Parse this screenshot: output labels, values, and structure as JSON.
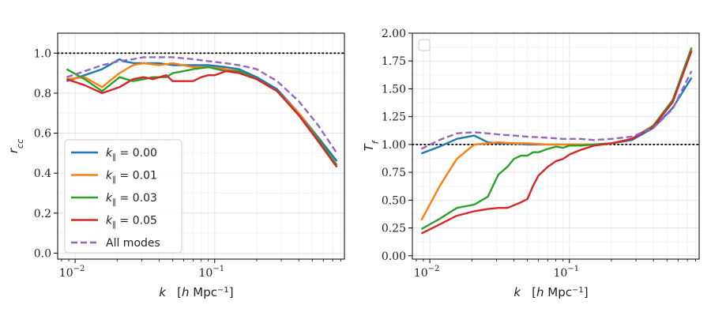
{
  "chart_data": [
    {
      "type": "line",
      "xscale": "log",
      "xlim": [
        0.0075,
        0.85
      ],
      "ylim": [
        -0.03,
        1.1
      ],
      "xlabel": "k   [h Mpc^-1]",
      "ylabel": "r_cc",
      "xticks": [
        {
          "value": 0.01,
          "base": "10",
          "exp": "−2"
        },
        {
          "value": 0.1,
          "base": "10",
          "exp": "−1"
        }
      ],
      "yticks": [
        {
          "value": 0.0,
          "label": "0.0"
        },
        {
          "value": 0.2,
          "label": "0.2"
        },
        {
          "value": 0.4,
          "label": "0.4"
        },
        {
          "value": 0.6,
          "label": "0.6"
        },
        {
          "value": 0.8,
          "label": "0.8"
        },
        {
          "value": 1.0,
          "label": "1.0"
        }
      ],
      "hline": {
        "y": 1.0,
        "style": "dotted",
        "color": "#000000"
      },
      "legend": "lower-left",
      "series": [
        {
          "name": "k∥ = 0.00",
          "legend_prefix": "k",
          "legend_sub": "∥",
          "legend_suffix": " = 0.00",
          "color": "#1f77b4",
          "dash": "solid",
          "x": [
            0.0087,
            0.0117,
            0.0156,
            0.0208,
            0.022,
            0.0265,
            0.031,
            0.04,
            0.05,
            0.07,
            0.09,
            0.12,
            0.15,
            0.2,
            0.28,
            0.4,
            0.55,
            0.75
          ],
          "y": [
            0.86,
            0.89,
            0.92,
            0.97,
            0.96,
            0.95,
            0.95,
            0.95,
            0.94,
            0.94,
            0.94,
            0.93,
            0.92,
            0.88,
            0.82,
            0.7,
            0.58,
            0.46
          ]
        },
        {
          "name": "k∥ = 0.01",
          "legend_prefix": "k",
          "legend_sub": "∥",
          "legend_suffix": " = 0.01",
          "color": "#ff7f0e",
          "dash": "solid",
          "x": [
            0.0087,
            0.0117,
            0.0156,
            0.0208,
            0.026,
            0.031,
            0.04,
            0.05,
            0.07,
            0.09,
            0.12,
            0.15,
            0.2,
            0.28,
            0.4,
            0.55,
            0.75
          ],
          "y": [
            0.87,
            0.88,
            0.83,
            0.9,
            0.94,
            0.95,
            0.94,
            0.95,
            0.93,
            0.93,
            0.92,
            0.91,
            0.87,
            0.81,
            0.7,
            0.57,
            0.44
          ]
        },
        {
          "name": "k∥ = 0.03",
          "legend_prefix": "k",
          "legend_sub": "∥",
          "legend_suffix": " = 0.03",
          "color": "#2ca02c",
          "dash": "solid",
          "x": [
            0.0087,
            0.0117,
            0.0156,
            0.0208,
            0.026,
            0.031,
            0.036,
            0.04,
            0.045,
            0.05,
            0.06,
            0.07,
            0.09,
            0.12,
            0.15,
            0.2,
            0.28,
            0.4,
            0.55,
            0.75
          ],
          "y": [
            0.92,
            0.87,
            0.81,
            0.88,
            0.86,
            0.87,
            0.88,
            0.88,
            0.88,
            0.9,
            0.91,
            0.92,
            0.93,
            0.91,
            0.91,
            0.87,
            0.81,
            0.69,
            0.57,
            0.44
          ]
        },
        {
          "name": "k∥ = 0.05",
          "legend_prefix": "k",
          "legend_sub": "∥",
          "legend_suffix": " = 0.05",
          "color": "#d62728",
          "dash": "solid",
          "x": [
            0.0087,
            0.0117,
            0.0156,
            0.0208,
            0.026,
            0.031,
            0.036,
            0.045,
            0.05,
            0.06,
            0.07,
            0.08,
            0.09,
            0.1,
            0.12,
            0.15,
            0.2,
            0.28,
            0.4,
            0.55,
            0.75
          ],
          "y": [
            0.87,
            0.84,
            0.8,
            0.83,
            0.87,
            0.88,
            0.87,
            0.89,
            0.86,
            0.86,
            0.86,
            0.88,
            0.89,
            0.89,
            0.91,
            0.9,
            0.87,
            0.81,
            0.69,
            0.56,
            0.43
          ]
        },
        {
          "name": "All modes",
          "legend_prefix": "All modes",
          "legend_sub": "",
          "legend_suffix": "",
          "color": "#9467bd",
          "dash": "dashed",
          "x": [
            0.0087,
            0.0117,
            0.0156,
            0.0208,
            0.026,
            0.031,
            0.04,
            0.05,
            0.07,
            0.09,
            0.12,
            0.15,
            0.2,
            0.28,
            0.4,
            0.55,
            0.75
          ],
          "y": [
            0.88,
            0.91,
            0.94,
            0.96,
            0.97,
            0.98,
            0.98,
            0.98,
            0.97,
            0.96,
            0.95,
            0.94,
            0.92,
            0.86,
            0.76,
            0.64,
            0.5
          ]
        }
      ]
    },
    {
      "type": "line",
      "xscale": "log",
      "xlim": [
        0.0075,
        0.85
      ],
      "ylim": [
        -0.03,
        2.0
      ],
      "xlabel": "k   [h Mpc^-1]",
      "ylabel": "T_f",
      "xticks": [
        {
          "value": 0.01,
          "base": "10",
          "exp": "−2"
        },
        {
          "value": 0.1,
          "base": "10",
          "exp": "−1"
        }
      ],
      "yticks": [
        {
          "value": 0.0,
          "label": "0.00"
        },
        {
          "value": 0.25,
          "label": "0.25"
        },
        {
          "value": 0.5,
          "label": "0.50"
        },
        {
          "value": 0.75,
          "label": "0.75"
        },
        {
          "value": 1.0,
          "label": "1.00"
        },
        {
          "value": 1.25,
          "label": "1.25"
        },
        {
          "value": 1.5,
          "label": "1.50"
        },
        {
          "value": 1.75,
          "label": "1.75"
        },
        {
          "value": 2.0,
          "label": "2.00"
        }
      ],
      "hline": {
        "y": 1.0,
        "style": "dotted",
        "color": "#000000"
      },
      "legend": "empty box top-left",
      "series": [
        {
          "name": "k∥ = 0.00",
          "color": "#1f77b4",
          "dash": "solid",
          "x": [
            0.0087,
            0.0117,
            0.0156,
            0.0208,
            0.026,
            0.031,
            0.04,
            0.05,
            0.07,
            0.09,
            0.12,
            0.15,
            0.2,
            0.28,
            0.4,
            0.55,
            0.75
          ],
          "y": [
            0.92,
            0.98,
            1.05,
            1.08,
            1.02,
            1.01,
            1.01,
            1.0,
            1.0,
            1.0,
            1.0,
            1.0,
            1.01,
            1.04,
            1.15,
            1.33,
            1.6
          ]
        },
        {
          "name": "k∥ = 0.01",
          "color": "#ff7f0e",
          "dash": "solid",
          "x": [
            0.0087,
            0.0117,
            0.0156,
            0.0208,
            0.026,
            0.031,
            0.04,
            0.05,
            0.07,
            0.09,
            0.12,
            0.15,
            0.2,
            0.28,
            0.4,
            0.55,
            0.75
          ],
          "y": [
            0.32,
            0.62,
            0.87,
            1.0,
            1.01,
            1.02,
            1.01,
            1.01,
            1.0,
            1.0,
            1.0,
            1.0,
            1.01,
            1.05,
            1.17,
            1.4,
            1.85
          ]
        },
        {
          "name": "k∥ = 0.03",
          "color": "#2ca02c",
          "dash": "solid",
          "x": [
            0.0087,
            0.0117,
            0.0156,
            0.0208,
            0.026,
            0.031,
            0.036,
            0.04,
            0.045,
            0.05,
            0.055,
            0.06,
            0.07,
            0.08,
            0.09,
            0.1,
            0.12,
            0.15,
            0.2,
            0.28,
            0.4,
            0.55,
            0.75
          ],
          "y": [
            0.24,
            0.33,
            0.43,
            0.46,
            0.53,
            0.73,
            0.8,
            0.87,
            0.9,
            0.9,
            0.93,
            0.93,
            0.96,
            0.98,
            0.97,
            0.99,
            0.99,
            1.0,
            1.01,
            1.05,
            1.17,
            1.4,
            1.87
          ]
        },
        {
          "name": "k∥ = 0.05",
          "color": "#d62728",
          "dash": "solid",
          "x": [
            0.0087,
            0.0117,
            0.0156,
            0.0208,
            0.026,
            0.031,
            0.036,
            0.045,
            0.05,
            0.055,
            0.06,
            0.07,
            0.08,
            0.09,
            0.1,
            0.12,
            0.15,
            0.2,
            0.28,
            0.4,
            0.55,
            0.75
          ],
          "y": [
            0.2,
            0.28,
            0.36,
            0.4,
            0.42,
            0.43,
            0.43,
            0.48,
            0.51,
            0.63,
            0.72,
            0.8,
            0.85,
            0.87,
            0.91,
            0.95,
            0.99,
            1.01,
            1.05,
            1.16,
            1.38,
            1.84
          ]
        },
        {
          "name": "All modes",
          "color": "#9467bd",
          "dash": "dashed",
          "x": [
            0.0087,
            0.0117,
            0.0156,
            0.0208,
            0.026,
            0.031,
            0.04,
            0.05,
            0.07,
            0.09,
            0.12,
            0.15,
            0.2,
            0.28,
            0.4,
            0.55,
            0.75
          ],
          "y": [
            0.96,
            1.04,
            1.1,
            1.11,
            1.1,
            1.09,
            1.08,
            1.07,
            1.06,
            1.05,
            1.05,
            1.04,
            1.05,
            1.07,
            1.15,
            1.32,
            1.66
          ]
        }
      ]
    }
  ]
}
